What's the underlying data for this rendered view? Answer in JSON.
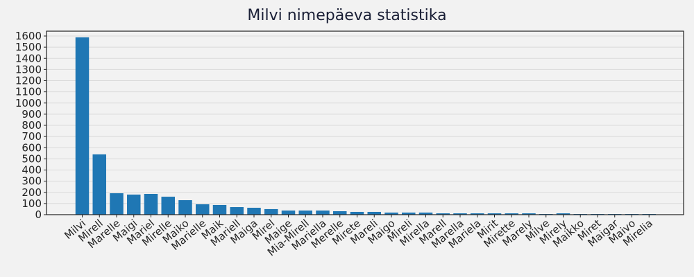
{
  "chart_data": {
    "type": "bar",
    "title": "Milvi nimepäeva statistika",
    "xlabel": "",
    "ylabel": "",
    "ylim": [
      0,
      1650
    ],
    "yticks": [
      0,
      100,
      200,
      300,
      400,
      500,
      600,
      700,
      800,
      900,
      1000,
      1100,
      1200,
      1300,
      1400,
      1500,
      1600
    ],
    "grid": "horizontal",
    "legend": null,
    "bar_color": "#1f77b4",
    "categories": [
      "Milvi",
      "Mirell",
      "Marelle",
      "Maigi",
      "Mariel",
      "Mirelle",
      "Maiko",
      "Marielle",
      "Maik",
      "Mariell",
      "Maiga",
      "Mirel",
      "Maige",
      "Mia-Mirell",
      "Mariella",
      "Merelle",
      "Mirete",
      "Mareli",
      "Maigo",
      "Mireli",
      "Mirella",
      "Marell",
      "Marella",
      "Mariela",
      "Mirit",
      "Mirette",
      "Marely",
      "Milve",
      "Mirely",
      "Maikko",
      "Miret",
      "Maigar",
      "Maivo",
      "Mirelia"
    ],
    "values": [
      1588,
      540,
      192,
      180,
      186,
      161,
      130,
      93,
      87,
      68,
      62,
      50,
      37,
      37,
      37,
      31,
      25,
      25,
      19,
      19,
      19,
      12,
      12,
      12,
      12,
      12,
      12,
      6,
      12,
      6,
      6,
      6,
      6,
      6
    ]
  }
}
